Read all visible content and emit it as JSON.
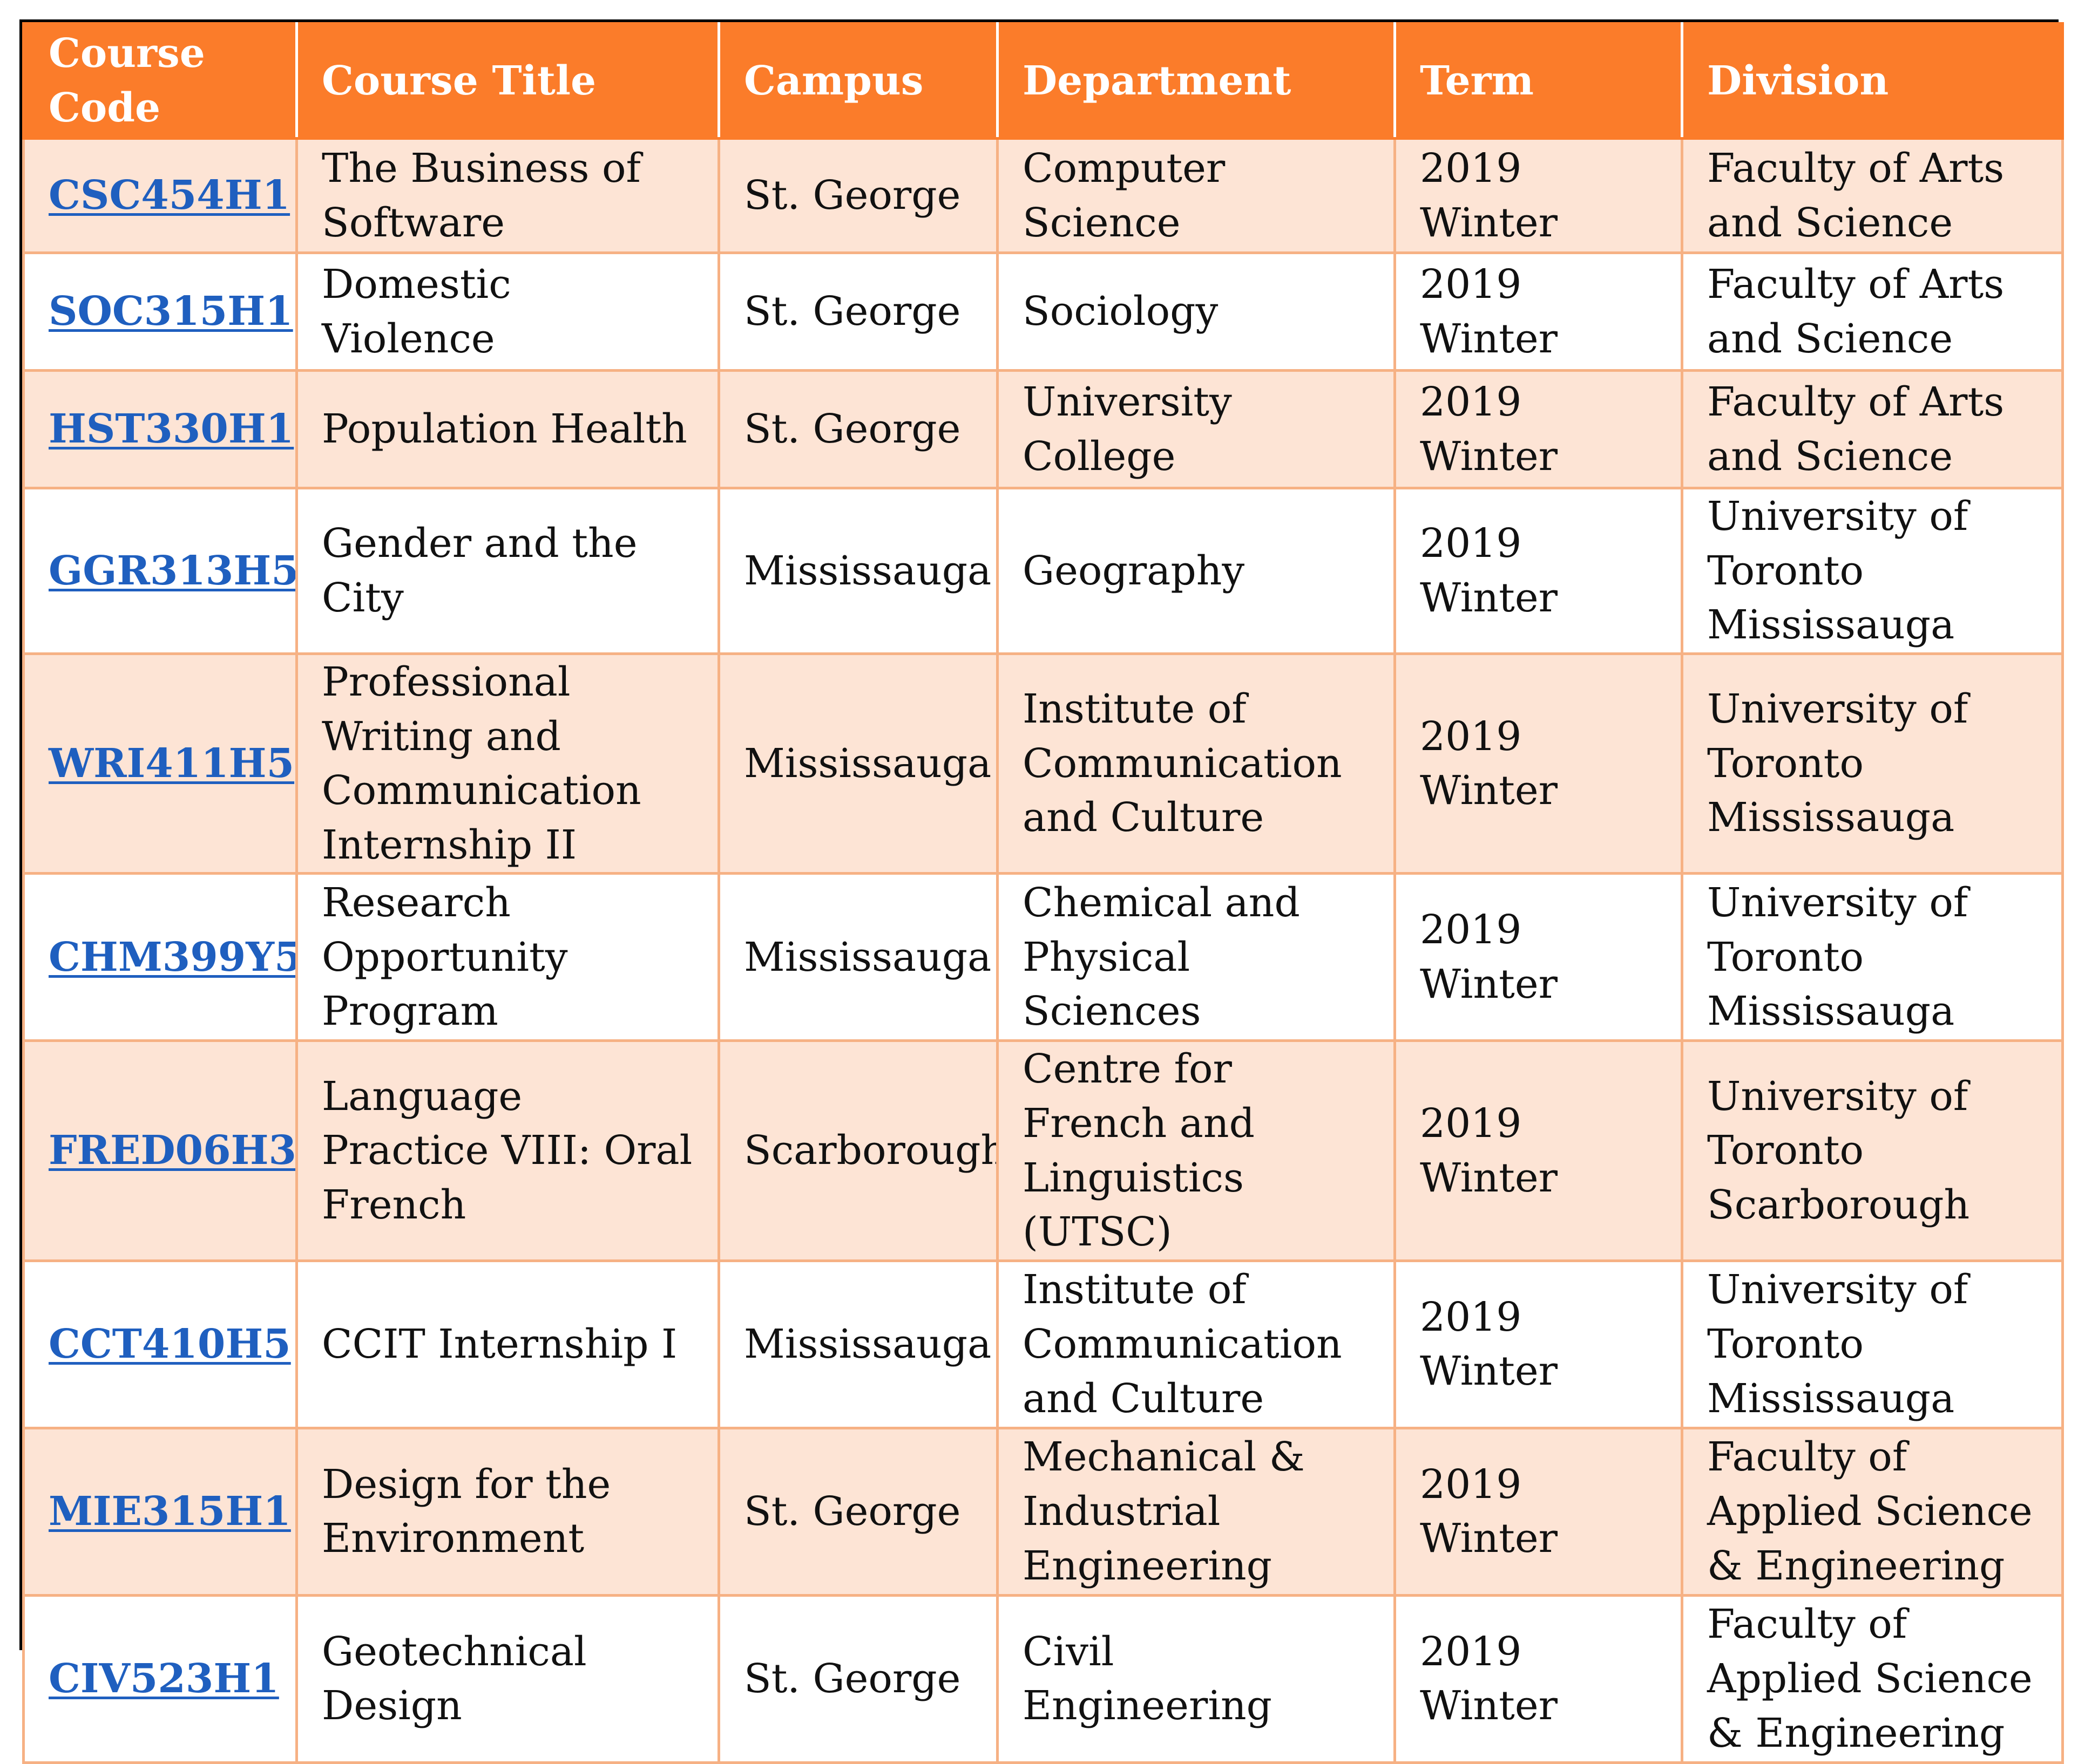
{
  "table": {
    "headers": {
      "code": "Course Code",
      "title": "Course Title",
      "campus": "Campus",
      "department": "Department",
      "term": "Term",
      "division": "Division"
    },
    "rows": [
      {
        "code": "CSC454H1",
        "title": "The Business of Software",
        "campus": "St. George",
        "department": "Computer Science",
        "term": "2019 Winter",
        "division": "Faculty of Arts and Science"
      },
      {
        "code": "SOC315H1",
        "title": "Domestic Violence",
        "campus": "St. George",
        "department": "Sociology",
        "term": "2019 Winter",
        "division": "Faculty of Arts and Science"
      },
      {
        "code": "HST330H1",
        "title": "Population Health",
        "campus": "St. George",
        "department": "University College",
        "term": "2019 Winter",
        "division": "Faculty of Arts and Science"
      },
      {
        "code": "GGR313H5",
        "title": "Gender and the City",
        "campus": "Mississauga",
        "department": "Geography",
        "term": "2019 Winter",
        "division": "University of Toronto Mississauga"
      },
      {
        "code": "WRI411H5",
        "title": "Professional Writing and Communication Internship II",
        "campus": "Mississauga",
        "department": "Institute of Communication and Culture",
        "term": "2019 Winter",
        "division": "University of Toronto Mississauga"
      },
      {
        "code": "CHM399Y5",
        "title": "Research Opportunity Program",
        "campus": "Mississauga",
        "department": "Chemical and Physical Sciences",
        "term": "2019 Winter",
        "division": "University of Toronto Mississauga"
      },
      {
        "code": "FRED06H3",
        "title": "Language Practice VIII: Oral French",
        "campus": "Scarborough",
        "department": "Centre for French and Linguistics (UTSC)",
        "term": "2019 Winter",
        "division": "University of Toronto Scarborough"
      },
      {
        "code": "CCT410H5",
        "title": "CCIT Internship I",
        "campus": "Mississauga",
        "department": "Institute of Communication and Culture",
        "term": "2019 Winter",
        "division": "University of Toronto Mississauga"
      },
      {
        "code": "MIE315H1",
        "title": "Design for the Environment",
        "campus": "St. George",
        "department": "Mechanical & Industrial Engineering",
        "term": "2019 Winter",
        "division": "Faculty of Applied Science & Engineering"
      },
      {
        "code": "CIV523H1",
        "title": "Geotechnical Design",
        "campus": "St. George",
        "department": "Civil Engineering",
        "term": "2019 Winter",
        "division": "Faculty of Applied Science & Engineering"
      }
    ]
  },
  "colors": {
    "header_bg": "#fb7c2a",
    "header_text": "#ffffff",
    "row_shade": "#fde4d5",
    "grid": "#f6b184",
    "link": "#1f5fbf"
  }
}
